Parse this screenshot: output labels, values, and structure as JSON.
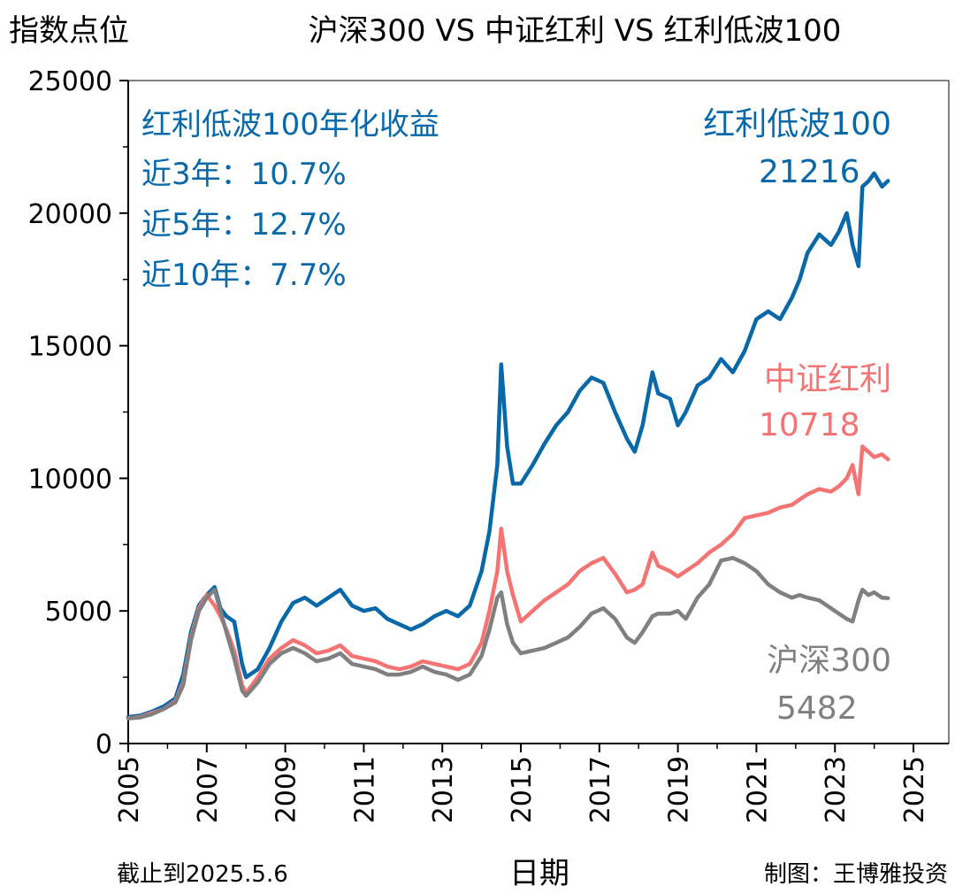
{
  "chart_data": {
    "type": "line",
    "title": "沪深300 VS 中证红利 VS 红利低波100",
    "ylabel": "指数点位",
    "xlabel": "日期",
    "ylim": [
      0,
      25000
    ],
    "xlim": [
      2005,
      2025.9
    ],
    "yticks": [
      0,
      5000,
      10000,
      15000,
      20000,
      25000
    ],
    "xticks": [
      2005,
      2007,
      2009,
      2011,
      2013,
      2015,
      2017,
      2019,
      2021,
      2023,
      2025
    ],
    "grid": false,
    "annotation_box": {
      "title": "红利低波100年化收益",
      "lines": [
        "近3年：10.7%",
        "近5年：12.7%",
        "近10年：7.7%"
      ]
    },
    "footer_left": "截止到2025.5.6",
    "footer_right": "制图：王博雅投资",
    "series": [
      {
        "name": "红利低波100",
        "end_label": "21216",
        "color": "#0868a8",
        "points": [
          [
            2005.0,
            1000
          ],
          [
            2005.3,
            1050
          ],
          [
            2005.6,
            1200
          ],
          [
            2005.9,
            1400
          ],
          [
            2006.2,
            1700
          ],
          [
            2006.4,
            2600
          ],
          [
            2006.6,
            4200
          ],
          [
            2006.8,
            5200
          ],
          [
            2007.0,
            5600
          ],
          [
            2007.2,
            5900
          ],
          [
            2007.35,
            5100
          ],
          [
            2007.5,
            4800
          ],
          [
            2007.7,
            4600
          ],
          [
            2007.9,
            3000
          ],
          [
            2008.0,
            2500
          ],
          [
            2008.3,
            2800
          ],
          [
            2008.6,
            3600
          ],
          [
            2008.9,
            4600
          ],
          [
            2009.2,
            5300
          ],
          [
            2009.5,
            5500
          ],
          [
            2009.8,
            5200
          ],
          [
            2010.1,
            5500
          ],
          [
            2010.4,
            5800
          ],
          [
            2010.7,
            5200
          ],
          [
            2011.0,
            5000
          ],
          [
            2011.3,
            5100
          ],
          [
            2011.6,
            4700
          ],
          [
            2011.9,
            4500
          ],
          [
            2012.2,
            4300
          ],
          [
            2012.5,
            4500
          ],
          [
            2012.8,
            4800
          ],
          [
            2013.1,
            5000
          ],
          [
            2013.4,
            4800
          ],
          [
            2013.7,
            5200
          ],
          [
            2014.0,
            6500
          ],
          [
            2014.2,
            8000
          ],
          [
            2014.4,
            10500
          ],
          [
            2014.5,
            14300
          ],
          [
            2014.65,
            11200
          ],
          [
            2014.8,
            9800
          ],
          [
            2015.0,
            9800
          ],
          [
            2015.3,
            10500
          ],
          [
            2015.6,
            11300
          ],
          [
            2015.9,
            12000
          ],
          [
            2016.2,
            12500
          ],
          [
            2016.5,
            13300
          ],
          [
            2016.8,
            13800
          ],
          [
            2017.1,
            13600
          ],
          [
            2017.4,
            12500
          ],
          [
            2017.7,
            11500
          ],
          [
            2017.9,
            11000
          ],
          [
            2018.1,
            12000
          ],
          [
            2018.35,
            14000
          ],
          [
            2018.5,
            13200
          ],
          [
            2018.8,
            13000
          ],
          [
            2019.0,
            12000
          ],
          [
            2019.2,
            12500
          ],
          [
            2019.5,
            13500
          ],
          [
            2019.8,
            13800
          ],
          [
            2020.1,
            14500
          ],
          [
            2020.4,
            14000
          ],
          [
            2020.7,
            14800
          ],
          [
            2021.0,
            16000
          ],
          [
            2021.3,
            16300
          ],
          [
            2021.6,
            16000
          ],
          [
            2021.9,
            16800
          ],
          [
            2022.1,
            17500
          ],
          [
            2022.3,
            18500
          ],
          [
            2022.6,
            19200
          ],
          [
            2022.9,
            18800
          ],
          [
            2023.1,
            19300
          ],
          [
            2023.3,
            20000
          ],
          [
            2023.45,
            18800
          ],
          [
            2023.6,
            18000
          ],
          [
            2023.7,
            21000
          ],
          [
            2023.85,
            21200
          ],
          [
            2024.0,
            21500
          ],
          [
            2024.2,
            21000
          ],
          [
            2024.35,
            21216
          ]
        ]
      },
      {
        "name": "中证红利",
        "end_label": "10718",
        "color": "#f47474",
        "points": [
          [
            2005.0,
            950
          ],
          [
            2005.3,
            1000
          ],
          [
            2005.6,
            1150
          ],
          [
            2005.9,
            1300
          ],
          [
            2006.2,
            1600
          ],
          [
            2006.4,
            2300
          ],
          [
            2006.6,
            4000
          ],
          [
            2006.8,
            5100
          ],
          [
            2007.0,
            5600
          ],
          [
            2007.2,
            5200
          ],
          [
            2007.35,
            4800
          ],
          [
            2007.5,
            4300
          ],
          [
            2007.7,
            3500
          ],
          [
            2007.9,
            2200
          ],
          [
            2008.0,
            1900
          ],
          [
            2008.3,
            2500
          ],
          [
            2008.6,
            3200
          ],
          [
            2008.9,
            3600
          ],
          [
            2009.2,
            3900
          ],
          [
            2009.5,
            3700
          ],
          [
            2009.8,
            3400
          ],
          [
            2010.1,
            3500
          ],
          [
            2010.4,
            3700
          ],
          [
            2010.7,
            3300
          ],
          [
            2011.0,
            3200
          ],
          [
            2011.3,
            3100
          ],
          [
            2011.6,
            2900
          ],
          [
            2011.9,
            2800
          ],
          [
            2012.2,
            2900
          ],
          [
            2012.5,
            3100
          ],
          [
            2012.8,
            3000
          ],
          [
            2013.1,
            2900
          ],
          [
            2013.4,
            2800
          ],
          [
            2013.7,
            3000
          ],
          [
            2014.0,
            3800
          ],
          [
            2014.2,
            5000
          ],
          [
            2014.4,
            6500
          ],
          [
            2014.5,
            8100
          ],
          [
            2014.65,
            6500
          ],
          [
            2014.8,
            5600
          ],
          [
            2015.0,
            4600
          ],
          [
            2015.3,
            5000
          ],
          [
            2015.6,
            5400
          ],
          [
            2015.9,
            5700
          ],
          [
            2016.2,
            6000
          ],
          [
            2016.5,
            6500
          ],
          [
            2016.8,
            6800
          ],
          [
            2017.1,
            7000
          ],
          [
            2017.4,
            6400
          ],
          [
            2017.7,
            5700
          ],
          [
            2017.9,
            5800
          ],
          [
            2018.1,
            6000
          ],
          [
            2018.35,
            7200
          ],
          [
            2018.5,
            6700
          ],
          [
            2018.8,
            6500
          ],
          [
            2019.0,
            6300
          ],
          [
            2019.2,
            6500
          ],
          [
            2019.5,
            6800
          ],
          [
            2019.8,
            7200
          ],
          [
            2020.1,
            7500
          ],
          [
            2020.4,
            7900
          ],
          [
            2020.7,
            8500
          ],
          [
            2021.0,
            8600
          ],
          [
            2021.3,
            8700
          ],
          [
            2021.6,
            8900
          ],
          [
            2021.9,
            9000
          ],
          [
            2022.1,
            9200
          ],
          [
            2022.3,
            9400
          ],
          [
            2022.6,
            9600
          ],
          [
            2022.9,
            9500
          ],
          [
            2023.1,
            9700
          ],
          [
            2023.3,
            10000
          ],
          [
            2023.45,
            10500
          ],
          [
            2023.6,
            9400
          ],
          [
            2023.7,
            11200
          ],
          [
            2023.85,
            11000
          ],
          [
            2024.0,
            10800
          ],
          [
            2024.2,
            10900
          ],
          [
            2024.35,
            10718
          ]
        ]
      },
      {
        "name": "沪深300",
        "end_label": "5482",
        "color": "#808080",
        "points": [
          [
            2005.0,
            950
          ],
          [
            2005.3,
            980
          ],
          [
            2005.6,
            1100
          ],
          [
            2005.9,
            1300
          ],
          [
            2006.2,
            1550
          ],
          [
            2006.4,
            2200
          ],
          [
            2006.6,
            3900
          ],
          [
            2006.8,
            5000
          ],
          [
            2007.0,
            5500
          ],
          [
            2007.2,
            5800
          ],
          [
            2007.35,
            5000
          ],
          [
            2007.5,
            4200
          ],
          [
            2007.7,
            3200
          ],
          [
            2007.9,
            2000
          ],
          [
            2008.0,
            1800
          ],
          [
            2008.3,
            2300
          ],
          [
            2008.6,
            3000
          ],
          [
            2008.9,
            3400
          ],
          [
            2009.2,
            3600
          ],
          [
            2009.5,
            3400
          ],
          [
            2009.8,
            3100
          ],
          [
            2010.1,
            3200
          ],
          [
            2010.4,
            3400
          ],
          [
            2010.7,
            3000
          ],
          [
            2011.0,
            2900
          ],
          [
            2011.3,
            2800
          ],
          [
            2011.6,
            2600
          ],
          [
            2011.9,
            2600
          ],
          [
            2012.2,
            2700
          ],
          [
            2012.5,
            2900
          ],
          [
            2012.8,
            2700
          ],
          [
            2013.1,
            2600
          ],
          [
            2013.4,
            2400
          ],
          [
            2013.7,
            2600
          ],
          [
            2014.0,
            3300
          ],
          [
            2014.2,
            4300
          ],
          [
            2014.4,
            5500
          ],
          [
            2014.5,
            5700
          ],
          [
            2014.65,
            4500
          ],
          [
            2014.8,
            3800
          ],
          [
            2015.0,
            3400
          ],
          [
            2015.3,
            3500
          ],
          [
            2015.6,
            3600
          ],
          [
            2015.9,
            3800
          ],
          [
            2016.2,
            4000
          ],
          [
            2016.5,
            4400
          ],
          [
            2016.8,
            4900
          ],
          [
            2017.1,
            5100
          ],
          [
            2017.4,
            4700
          ],
          [
            2017.7,
            4000
          ],
          [
            2017.9,
            3800
          ],
          [
            2018.1,
            4200
          ],
          [
            2018.35,
            4800
          ],
          [
            2018.5,
            4900
          ],
          [
            2018.8,
            4900
          ],
          [
            2019.0,
            5000
          ],
          [
            2019.2,
            4700
          ],
          [
            2019.5,
            5500
          ],
          [
            2019.8,
            6000
          ],
          [
            2020.1,
            6900
          ],
          [
            2020.4,
            7000
          ],
          [
            2020.7,
            6800
          ],
          [
            2021.0,
            6500
          ],
          [
            2021.3,
            6000
          ],
          [
            2021.6,
            5700
          ],
          [
            2021.9,
            5500
          ],
          [
            2022.1,
            5600
          ],
          [
            2022.3,
            5500
          ],
          [
            2022.6,
            5400
          ],
          [
            2022.9,
            5100
          ],
          [
            2023.1,
            4900
          ],
          [
            2023.3,
            4700
          ],
          [
            2023.45,
            4600
          ],
          [
            2023.6,
            5400
          ],
          [
            2023.7,
            5800
          ],
          [
            2023.85,
            5600
          ],
          [
            2024.0,
            5700
          ],
          [
            2024.2,
            5500
          ],
          [
            2024.35,
            5482
          ]
        ]
      }
    ]
  }
}
